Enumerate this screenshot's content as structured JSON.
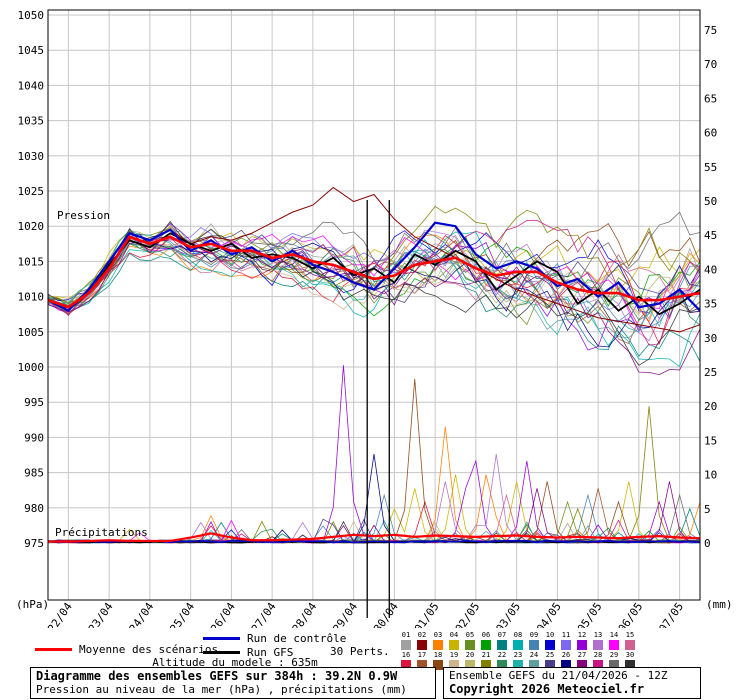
{
  "labels": {
    "pression": "Pression",
    "precipitations": "Précipitations",
    "hpa": "(hPa)",
    "mm": "(mm)",
    "altitude": "Altitude du modele : 635m",
    "perts": "30 Perts."
  },
  "legend": {
    "mean": "Moyenne des scénarios",
    "control": "Run de contrôle",
    "gfs": "Run GFS"
  },
  "footer": {
    "title": "Diagramme des ensembles GEFS sur 384h : 39.2N 0.9W",
    "subtitle": "Pression au niveau de la mer (hPa) , précipitations (mm)",
    "run": "Ensemble GEFS du 21/04/2026 - 12Z",
    "copyright": "Copyright 2026 Meteociel.fr"
  },
  "chart_data": {
    "type": "line",
    "title": "Diagramme des ensembles GEFS sur 384h : 39.2N 0.9W",
    "x_hours_range": [
      0,
      384
    ],
    "hours_step": 12,
    "dates": [
      "22/04",
      "23/04",
      "24/04",
      "25/04",
      "26/04",
      "27/04",
      "28/04",
      "29/04",
      "30/04",
      "01/05",
      "02/05",
      "03/05",
      "04/05",
      "05/05",
      "06/05",
      "07/05"
    ],
    "pressure_axis": {
      "min": 975,
      "max": 1050,
      "step": 5,
      "unit": "hPa"
    },
    "precip_axis": {
      "min": 0,
      "max": 75,
      "step": 5,
      "unit": "mm"
    },
    "mean_pressure": [
      1009.5,
      1008.5,
      1010.5,
      1014,
      1018.5,
      1017.5,
      1018.5,
      1017,
      1017.5,
      1016.5,
      1016.5,
      1015.5,
      1016,
      1015,
      1014.5,
      1013.5,
      1012.5,
      1013,
      1014.5,
      1015,
      1015.5,
      1014,
      1013,
      1013.5,
      1013.5,
      1012,
      1011,
      1010.5,
      1010.5,
      1009.5,
      1009.5,
      1010,
      1010.5
    ],
    "control_pressure": [
      1009.5,
      1008,
      1011,
      1015,
      1019,
      1018,
      1019.5,
      1016.5,
      1018,
      1016,
      1017,
      1015,
      1016.5,
      1014.5,
      1013.5,
      1012,
      1011,
      1014,
      1017,
      1020.5,
      1020,
      1016,
      1014,
      1015,
      1014,
      1011.5,
      1012.5,
      1010,
      1012,
      1008.5,
      1009,
      1011,
      1008
    ],
    "gfs_pressure": [
      1009.5,
      1008.5,
      1010.5,
      1014.5,
      1018,
      1017,
      1019,
      1017.5,
      1016.5,
      1017.5,
      1015.5,
      1016,
      1015.5,
      1014,
      1015.5,
      1013,
      1014,
      1012,
      1016,
      1014.5,
      1016.5,
      1015,
      1011,
      1013,
      1015,
      1013.5,
      1009,
      1011,
      1008,
      1010,
      1007.5,
      1009,
      1011
    ],
    "spread": [
      1,
      1.5,
      1.5,
      2,
      2,
      2,
      2.5,
      2.5,
      3,
      3,
      3,
      3.5,
      3.5,
      4,
      4.5,
      5,
      5,
      5,
      5,
      5,
      5,
      5.5,
      5.5,
      6,
      6,
      6,
      6.5,
      7,
      7,
      7.5,
      8,
      8,
      8.5
    ],
    "highlight_member": {
      "index": 1,
      "values": [
        1009.5,
        1008,
        1011,
        1015,
        1019,
        1018,
        1019.5,
        1017.5,
        1018.5,
        1018,
        1019,
        1020.5,
        1022,
        1023,
        1025.5,
        1023.5,
        1024.5,
        1021,
        1018.5,
        1017,
        1015.5,
        1014,
        1012.5,
        1011,
        1010,
        1009,
        1008,
        1007,
        1006.5,
        1006,
        1005.5,
        1005,
        1006
      ]
    },
    "mean_precip": [
      0.2,
      0.2,
      0.3,
      0.4,
      0.3,
      0.3,
      0.3,
      0.8,
      1.4,
      0.8,
      0.4,
      0.4,
      0.5,
      0.6,
      0.9,
      1.2,
      1.0,
      1.2,
      0.9,
      1.1,
      1.0,
      0.9,
      1.0,
      1.1,
      0.9,
      0.8,
      0.9,
      0.8,
      0.7,
      0.9,
      1.0,
      0.8,
      0.7
    ],
    "precip_events": [
      [
        48,
        4,
        2
      ],
      [
        54,
        14,
        1.5
      ],
      [
        90,
        13,
        3
      ],
      [
        96,
        3,
        4
      ],
      [
        96,
        16,
        2.5
      ],
      [
        102,
        7,
        3
      ],
      [
        150,
        13,
        3
      ],
      [
        162,
        9,
        2.5
      ],
      [
        172,
        12,
        26
      ],
      [
        178,
        12,
        6
      ],
      [
        190,
        26,
        13
      ],
      [
        196,
        9,
        7
      ],
      [
        204,
        4,
        5
      ],
      [
        213,
        18,
        24
      ],
      [
        218,
        4,
        8
      ],
      [
        224,
        16,
        6
      ],
      [
        232,
        3,
        17
      ],
      [
        236,
        13,
        9
      ],
      [
        240,
        4,
        10
      ],
      [
        246,
        12,
        8
      ],
      [
        252,
        12,
        12
      ],
      [
        256,
        3,
        10
      ],
      [
        262,
        13,
        13
      ],
      [
        268,
        15,
        7
      ],
      [
        276,
        4,
        9
      ],
      [
        282,
        12,
        12
      ],
      [
        288,
        27,
        8
      ],
      [
        296,
        18,
        9
      ],
      [
        304,
        5,
        6
      ],
      [
        312,
        21,
        5
      ],
      [
        318,
        9,
        7
      ],
      [
        326,
        17,
        8
      ],
      [
        334,
        18,
        6
      ],
      [
        340,
        4,
        9
      ],
      [
        352,
        21,
        20
      ],
      [
        358,
        12,
        6
      ],
      [
        366,
        27,
        9
      ],
      [
        372,
        29,
        7
      ],
      [
        378,
        7,
        5
      ],
      [
        382,
        3,
        6
      ]
    ],
    "markers_h": [
      188,
      201
    ],
    "members": 30,
    "member_colors": [
      "#a0a0a0",
      "#8b0000",
      "#ff8000",
      "#c8b400",
      "#6b8e23",
      "#00a000",
      "#008080",
      "#00b0b0",
      "#4682b4",
      "#0000cd",
      "#7b68ee",
      "#9400d3",
      "#b070d0",
      "#ff00ff",
      "#d06090",
      "#dc143c",
      "#a0522d",
      "#8b4513",
      "#d2b48c",
      "#bdb76b",
      "#808000",
      "#2e8b57",
      "#20b2aa",
      "#5f9ea0",
      "#483d8b",
      "#000080",
      "#800080",
      "#c71585",
      "#696969",
      "#303030"
    ],
    "colors": {
      "mean": "#ff0000",
      "control": "#0000cc",
      "gfs": "#000000",
      "grid": "#c6c6c6"
    }
  }
}
